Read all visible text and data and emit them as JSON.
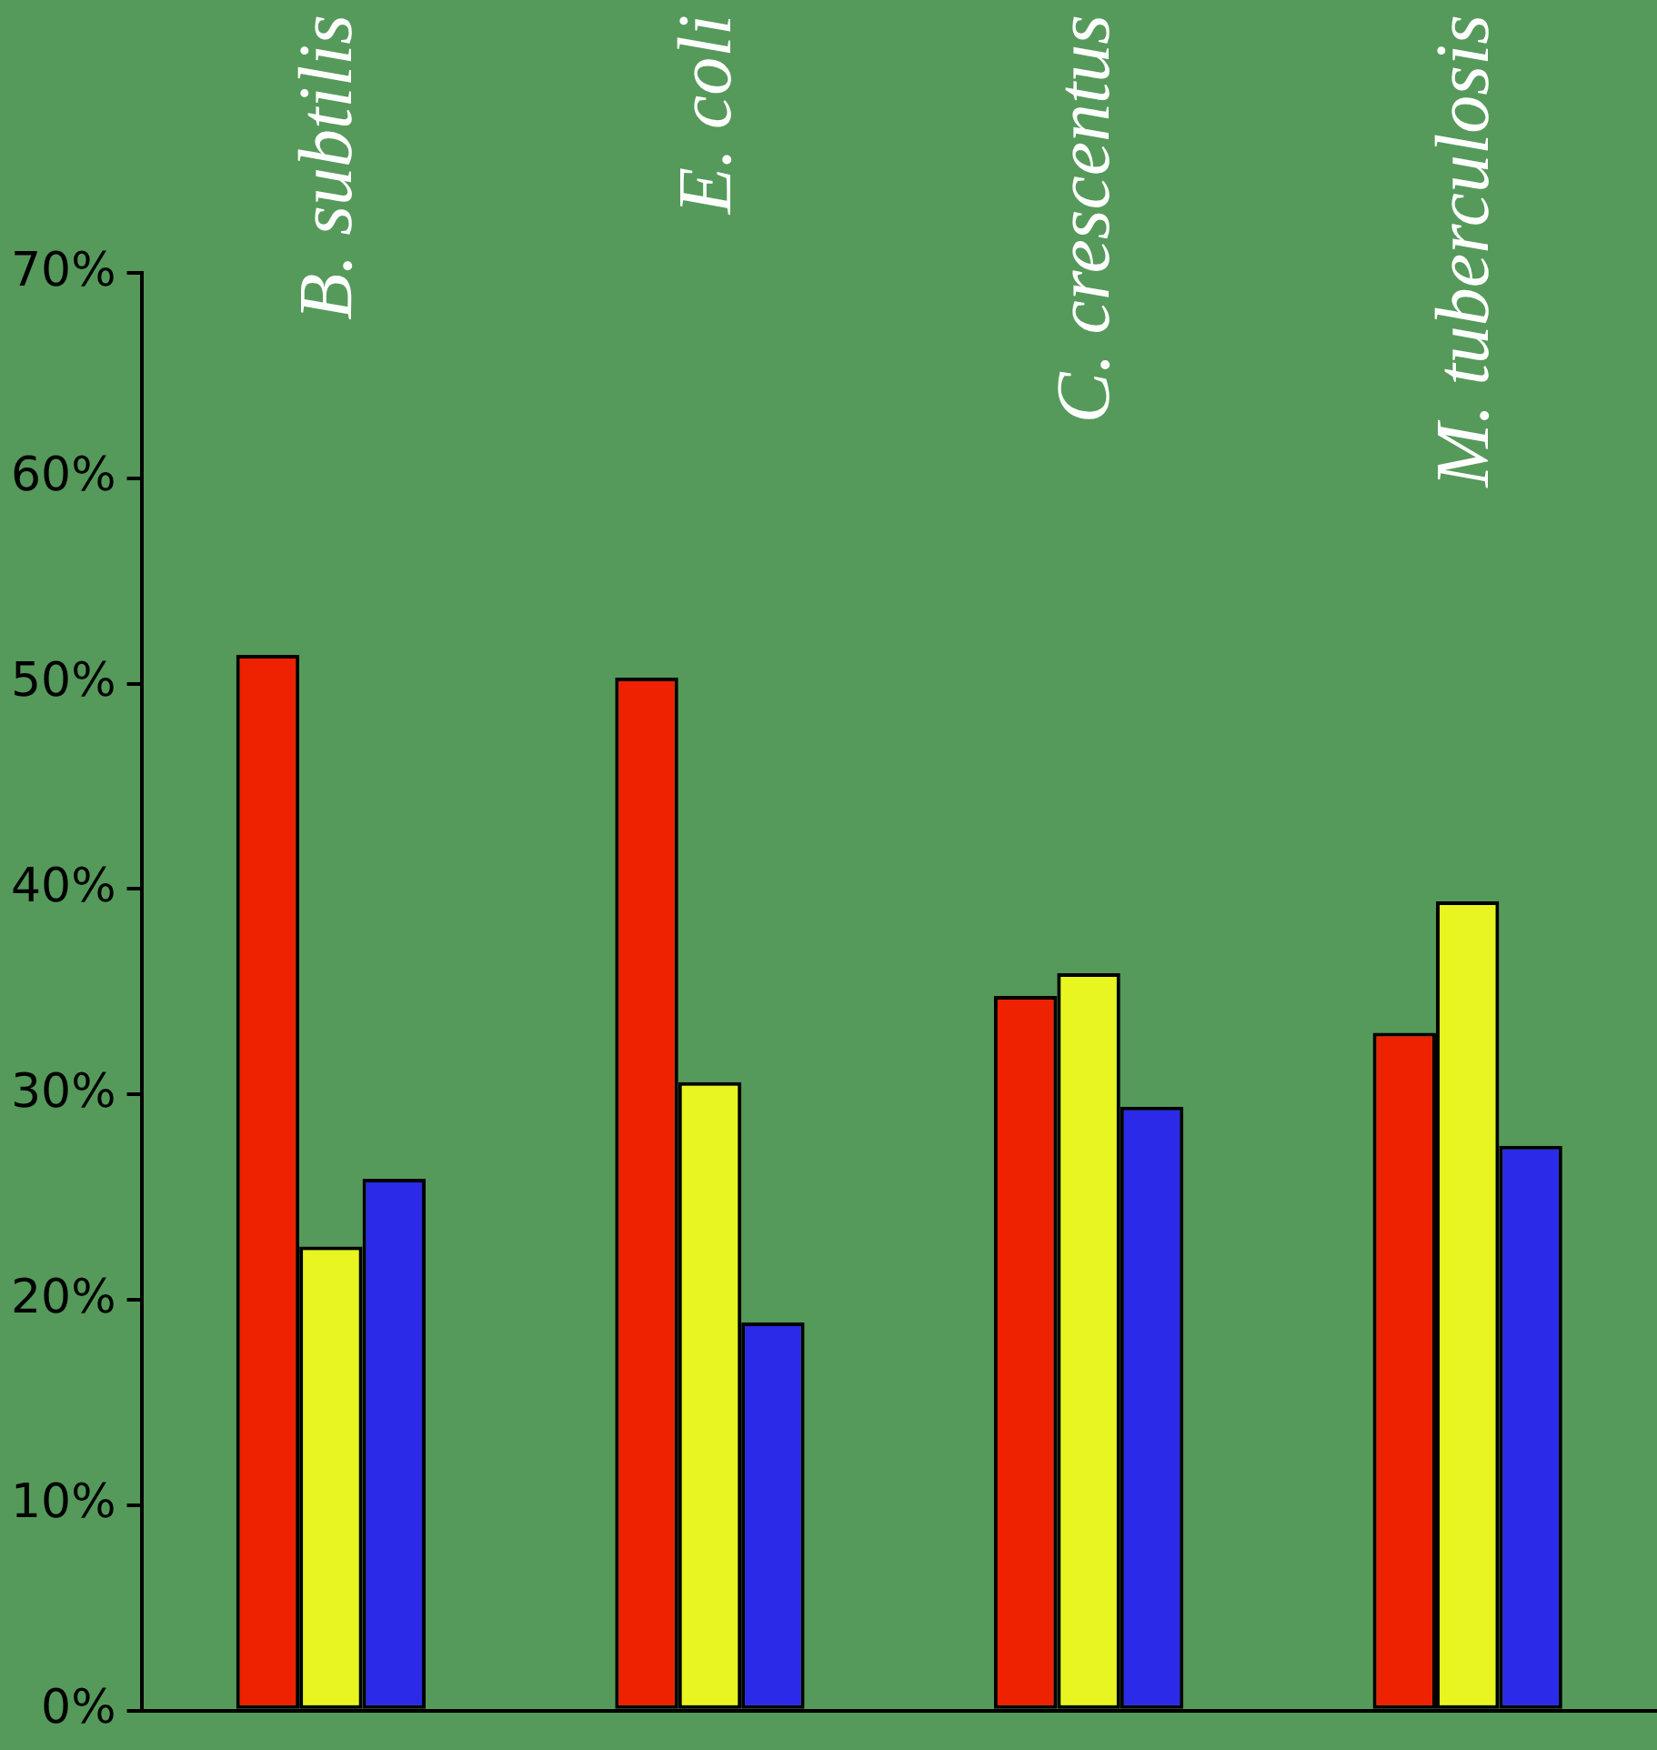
{
  "chart_data": {
    "type": "bar",
    "categories": [
      "B. subtilis",
      "E. coli",
      "C. crescentus",
      "M. tuberculosis"
    ],
    "series": [
      {
        "color": "#ee2200",
        "values": [
          51.4,
          50.3,
          34.8,
          33.0
        ]
      },
      {
        "color": "#e8f520",
        "values": [
          22.6,
          30.6,
          35.9,
          39.4
        ]
      },
      {
        "color": "#2a2ae8",
        "values": [
          25.9,
          18.9,
          29.4,
          27.5
        ]
      }
    ],
    "ylim": [
      0,
      70
    ],
    "yticks": [
      {
        "value": 0,
        "label": "0%"
      },
      {
        "value": 10,
        "label": "10%"
      },
      {
        "value": 20,
        "label": "20%"
      },
      {
        "value": 30,
        "label": "30%"
      },
      {
        "value": 40,
        "label": "40%"
      },
      {
        "value": 50,
        "label": "50%"
      },
      {
        "value": 60,
        "label": "60%"
      },
      {
        "value": 70,
        "label": "70%"
      }
    ],
    "grid": false,
    "legend": false
  }
}
